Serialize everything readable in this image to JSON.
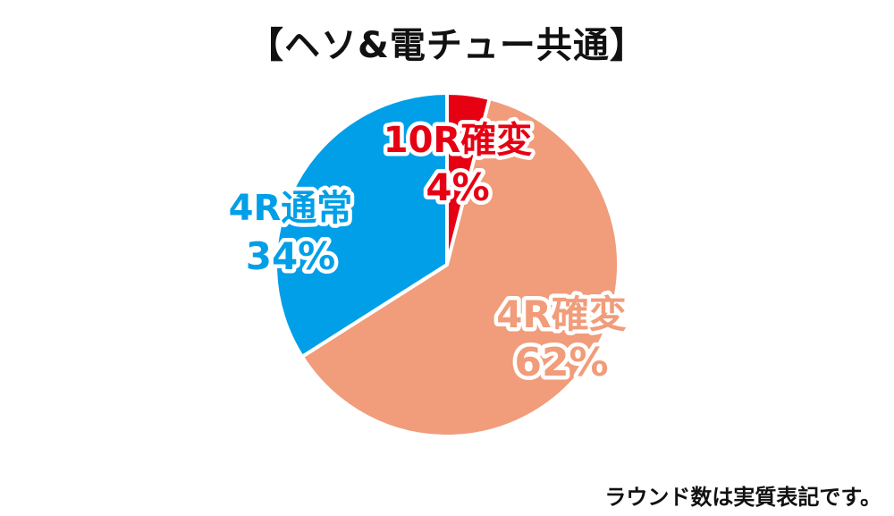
{
  "chart_data": {
    "type": "pie",
    "title": "【ヘソ&電チュー共通】",
    "slices": [
      {
        "name": "10R確変",
        "value": 4,
        "label_pct": "4%",
        "color": "#e60012",
        "label_color": "#e60012"
      },
      {
        "name": "4R確変",
        "value": 62,
        "label_pct": "62%",
        "color": "#f19c7a",
        "label_color": "#f19c7a"
      },
      {
        "name": "4R通常",
        "value": 34,
        "label_pct": "34%",
        "color": "#009fe8",
        "label_color": "#009fe8"
      }
    ],
    "start": "12 o'clock",
    "direction": "clockwise",
    "legend": "none"
  },
  "footnote": "ラウンド数は実質表記です。"
}
